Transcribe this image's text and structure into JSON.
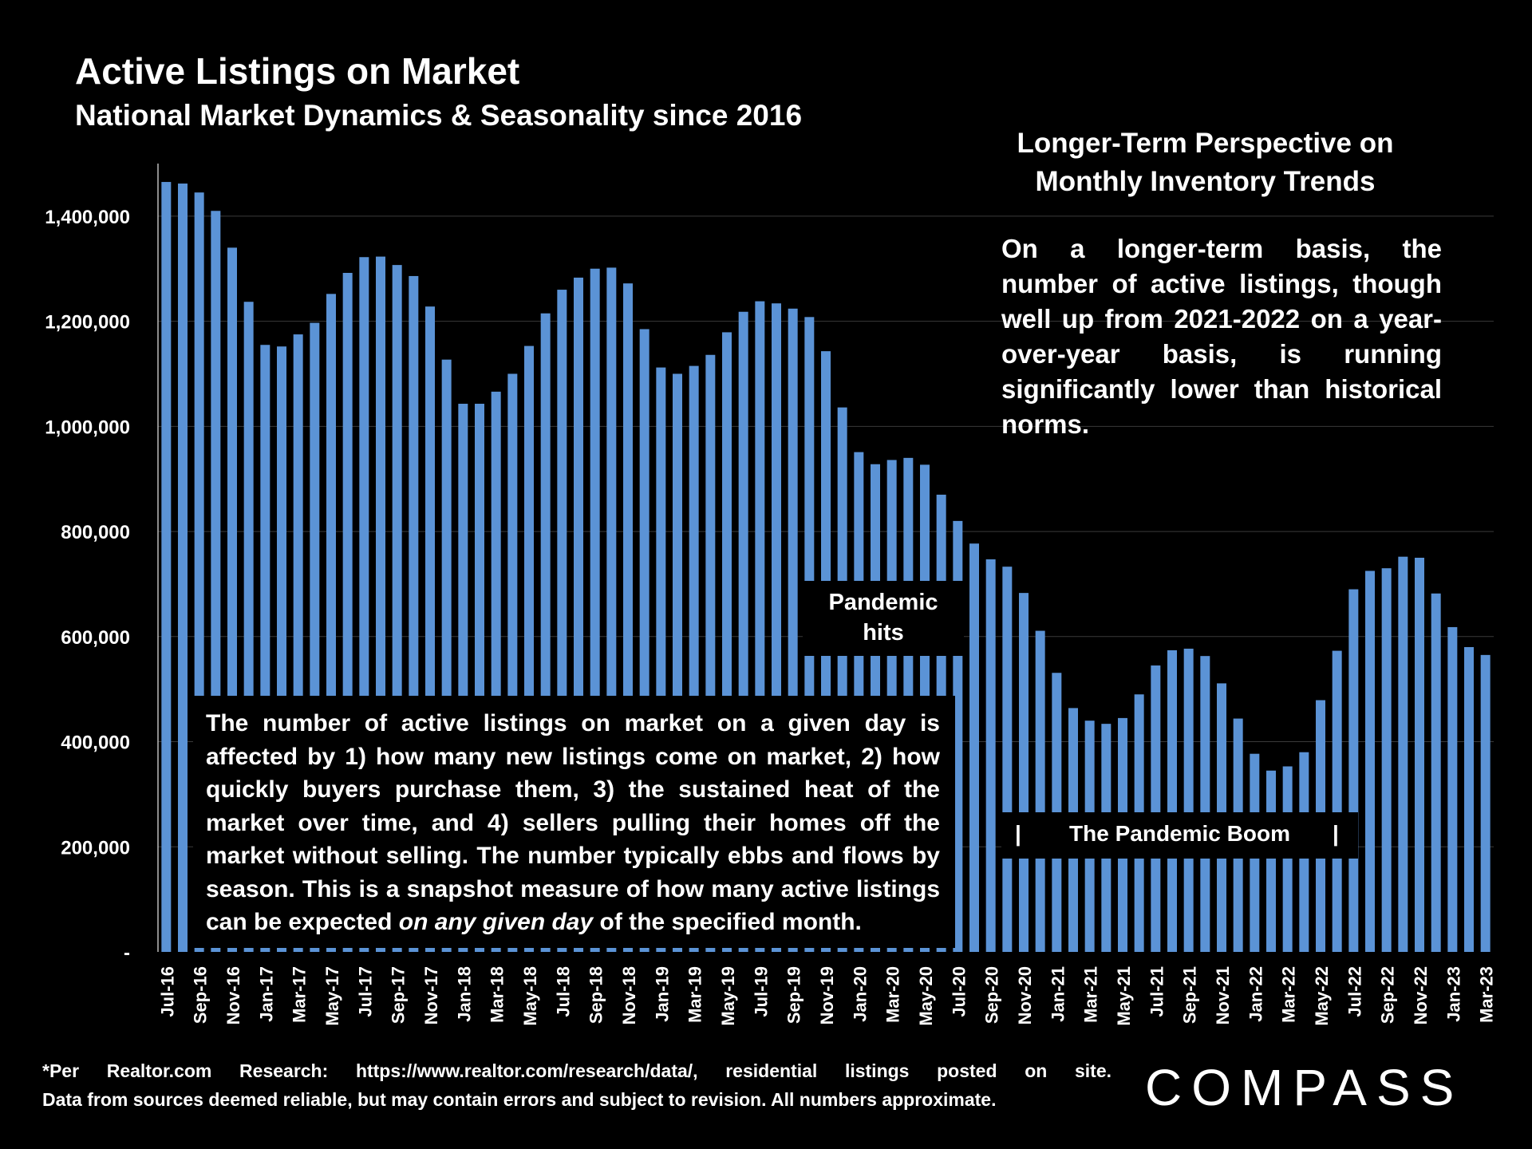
{
  "header": {
    "title": "Active Listings on Market",
    "subtitle": "National Market Dynamics & Seasonality since 2016"
  },
  "perspective": {
    "title_line1": "Longer-Term Perspective on",
    "title_line2": "Monthly Inventory Trends",
    "body": "On a longer-term basis, the number of active listings, though well up from 2021-2022 on a year-over-year basis, is running significantly lower than historical norms."
  },
  "annotations": {
    "explain_pre": "The number of active listings on market on a given day is affected by 1) how many new listings come on market, 2) how quickly buyers purchase them, 3) the sustained heat of the market over time, and 4) sellers pulling their homes off the market without selling. The number typically ebbs and flows by season. This is a snapshot measure of how many active listings can be expected ",
    "explain_italic": "on any given day",
    "explain_post": " of the specified month.",
    "pandemic_line1": "Pandemic",
    "pandemic_line2": "hits",
    "boom_label": "The Pandemic Boom",
    "boom_bar": "|"
  },
  "footer": {
    "note_line1": "*Per Realtor.com Research:  https://www.realtor.com/research/data/, residential listings posted on site.",
    "note_line2": "Data from sources deemed reliable, but may contain errors and subject to revision. All numbers approximate.",
    "logo": "COMPASS"
  },
  "colors": {
    "bar": "#5B93D6",
    "background": "#000000",
    "grid": "#3a3a3a",
    "text": "#ffffff"
  },
  "chart_data": {
    "type": "bar",
    "ylim": [
      0,
      1500000
    ],
    "yticks": [
      0,
      200000,
      400000,
      600000,
      800000,
      1000000,
      1200000,
      1400000
    ],
    "ytick_labels": [
      "-",
      "200,000",
      "400,000",
      "600,000",
      "800,000",
      "1,000,000",
      "1,200,000",
      "1,400,000"
    ],
    "grid": true,
    "x_tick_labels": [
      "Jul-16",
      "Sep-16",
      "Nov-16",
      "Jan-17",
      "Mar-17",
      "May-17",
      "Jul-17",
      "Sep-17",
      "Nov-17",
      "Jan-18",
      "Mar-18",
      "May-18",
      "Jul-18",
      "Sep-18",
      "Nov-18",
      "Jan-19",
      "Mar-19",
      "May-19",
      "Jul-19",
      "Sep-19",
      "Nov-19",
      "Jan-20",
      "Mar-20",
      "May-20",
      "Jul-20",
      "Sep-20",
      "Nov-20",
      "Jan-21",
      "Mar-21",
      "May-21",
      "Jul-21",
      "Sep-21",
      "Nov-21",
      "Jan-22",
      "Mar-22",
      "May-22",
      "Jul-22",
      "Sep-22",
      "Nov-22",
      "Jan-23",
      "Mar-23"
    ],
    "categories": [
      "Jul-16",
      "Aug-16",
      "Sep-16",
      "Oct-16",
      "Nov-16",
      "Dec-16",
      "Jan-17",
      "Feb-17",
      "Mar-17",
      "Apr-17",
      "May-17",
      "Jun-17",
      "Jul-17",
      "Aug-17",
      "Sep-17",
      "Oct-17",
      "Nov-17",
      "Dec-17",
      "Jan-18",
      "Feb-18",
      "Mar-18",
      "Apr-18",
      "May-18",
      "Jun-18",
      "Jul-18",
      "Aug-18",
      "Sep-18",
      "Oct-18",
      "Nov-18",
      "Dec-18",
      "Jan-19",
      "Feb-19",
      "Mar-19",
      "Apr-19",
      "May-19",
      "Jun-19",
      "Jul-19",
      "Aug-19",
      "Sep-19",
      "Oct-19",
      "Nov-19",
      "Dec-19",
      "Jan-20",
      "Feb-20",
      "Mar-20",
      "Apr-20",
      "May-20",
      "Jun-20",
      "Jul-20",
      "Aug-20",
      "Sep-20",
      "Oct-20",
      "Nov-20",
      "Dec-20",
      "Jan-21",
      "Feb-21",
      "Mar-21",
      "Apr-21",
      "May-21",
      "Jun-21",
      "Jul-21",
      "Aug-21",
      "Sep-21",
      "Oct-21",
      "Nov-21",
      "Dec-21",
      "Jan-22",
      "Feb-22",
      "Mar-22",
      "Apr-22",
      "May-22",
      "Jun-22",
      "Jul-22",
      "Aug-22",
      "Sep-22",
      "Oct-22",
      "Nov-22",
      "Dec-22",
      "Jan-23",
      "Feb-23",
      "Mar-23"
    ],
    "values": [
      1465000,
      1462000,
      1445000,
      1410000,
      1340000,
      1237000,
      1155000,
      1152000,
      1175000,
      1197000,
      1252000,
      1292000,
      1322000,
      1323000,
      1307000,
      1286000,
      1228000,
      1127000,
      1043000,
      1043000,
      1066000,
      1100000,
      1153000,
      1215000,
      1260000,
      1283000,
      1300000,
      1302000,
      1272000,
      1185000,
      1112000,
      1100000,
      1115000,
      1136000,
      1179000,
      1218000,
      1238000,
      1234000,
      1224000,
      1208000,
      1143000,
      1036000,
      951000,
      928000,
      936000,
      940000,
      927000,
      870000,
      820000,
      777000,
      747000,
      733000,
      683000,
      611000,
      531000,
      464000,
      440000,
      434000,
      445000,
      490000,
      545000,
      574000,
      577000,
      563000,
      511000,
      444000,
      377000,
      345000,
      353000,
      380000,
      479000,
      573000,
      690000,
      725000,
      730000,
      752000,
      750000,
      682000,
      618000,
      580000,
      565000
    ]
  }
}
